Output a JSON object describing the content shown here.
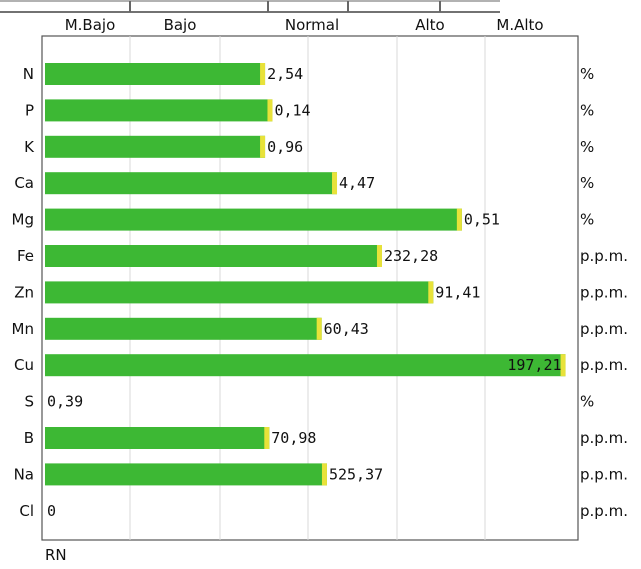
{
  "chart_data": {
    "type": "bar",
    "orientation": "horizontal",
    "title": "",
    "xlabel": "RN",
    "ylabel": "",
    "level_labels": [
      "M.Bajo",
      "Bajo",
      "Normal",
      "Alto",
      "M.Alto"
    ],
    "grid": true,
    "bar_color": "#3db834",
    "categories": [
      "N",
      "P",
      "K",
      "Ca",
      "Mg",
      "Fe",
      "Zn",
      "Mn",
      "Cu",
      "S",
      "B",
      "Na",
      "Cl"
    ],
    "value_labels": [
      "2,54",
      "0,14",
      "0,96",
      "4,47",
      "0,51",
      "232,28",
      "91,41",
      "60,43",
      "197,21",
      "0,39",
      "70,98",
      "525,37",
      "0"
    ],
    "relative_level": [
      0.416,
      0.43,
      0.416,
      0.552,
      0.788,
      0.637,
      0.734,
      0.523,
      0.984,
      0,
      0.424,
      0.533,
      0
    ],
    "units": [
      "%",
      "%",
      "%",
      "%",
      "%",
      "p.p.m.",
      "p.p.m.",
      "p.p.m.",
      "p.p.m.",
      "%",
      "p.p.m.",
      "p.p.m.",
      "p.p.m."
    ]
  }
}
